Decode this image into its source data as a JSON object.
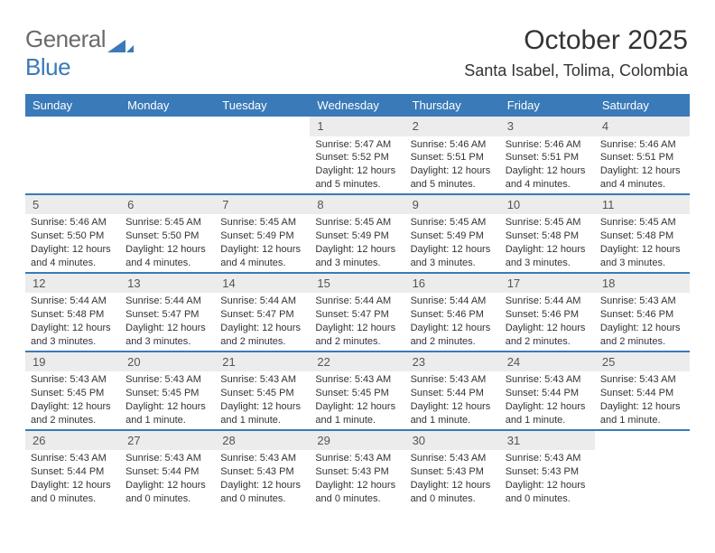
{
  "logo": {
    "text1": "General",
    "text2": "Blue",
    "icon_color": "#3a7ab8"
  },
  "header": {
    "title": "October 2025",
    "location": "Santa Isabel, Tolima, Colombia"
  },
  "colors": {
    "header_bg": "#3a7ab8",
    "header_fg": "#ffffff",
    "daynum_bg": "#ececec",
    "divider": "#3a7ab8"
  },
  "day_names": [
    "Sunday",
    "Monday",
    "Tuesday",
    "Wednesday",
    "Thursday",
    "Friday",
    "Saturday"
  ],
  "weeks": [
    [
      null,
      null,
      null,
      {
        "n": "1",
        "sr": "5:47 AM",
        "ss": "5:52 PM",
        "dl": "12 hours and 5 minutes."
      },
      {
        "n": "2",
        "sr": "5:46 AM",
        "ss": "5:51 PM",
        "dl": "12 hours and 5 minutes."
      },
      {
        "n": "3",
        "sr": "5:46 AM",
        "ss": "5:51 PM",
        "dl": "12 hours and 4 minutes."
      },
      {
        "n": "4",
        "sr": "5:46 AM",
        "ss": "5:51 PM",
        "dl": "12 hours and 4 minutes."
      }
    ],
    [
      {
        "n": "5",
        "sr": "5:46 AM",
        "ss": "5:50 PM",
        "dl": "12 hours and 4 minutes."
      },
      {
        "n": "6",
        "sr": "5:45 AM",
        "ss": "5:50 PM",
        "dl": "12 hours and 4 minutes."
      },
      {
        "n": "7",
        "sr": "5:45 AM",
        "ss": "5:49 PM",
        "dl": "12 hours and 4 minutes."
      },
      {
        "n": "8",
        "sr": "5:45 AM",
        "ss": "5:49 PM",
        "dl": "12 hours and 3 minutes."
      },
      {
        "n": "9",
        "sr": "5:45 AM",
        "ss": "5:49 PM",
        "dl": "12 hours and 3 minutes."
      },
      {
        "n": "10",
        "sr": "5:45 AM",
        "ss": "5:48 PM",
        "dl": "12 hours and 3 minutes."
      },
      {
        "n": "11",
        "sr": "5:45 AM",
        "ss": "5:48 PM",
        "dl": "12 hours and 3 minutes."
      }
    ],
    [
      {
        "n": "12",
        "sr": "5:44 AM",
        "ss": "5:48 PM",
        "dl": "12 hours and 3 minutes."
      },
      {
        "n": "13",
        "sr": "5:44 AM",
        "ss": "5:47 PM",
        "dl": "12 hours and 3 minutes."
      },
      {
        "n": "14",
        "sr": "5:44 AM",
        "ss": "5:47 PM",
        "dl": "12 hours and 2 minutes."
      },
      {
        "n": "15",
        "sr": "5:44 AM",
        "ss": "5:47 PM",
        "dl": "12 hours and 2 minutes."
      },
      {
        "n": "16",
        "sr": "5:44 AM",
        "ss": "5:46 PM",
        "dl": "12 hours and 2 minutes."
      },
      {
        "n": "17",
        "sr": "5:44 AM",
        "ss": "5:46 PM",
        "dl": "12 hours and 2 minutes."
      },
      {
        "n": "18",
        "sr": "5:43 AM",
        "ss": "5:46 PM",
        "dl": "12 hours and 2 minutes."
      }
    ],
    [
      {
        "n": "19",
        "sr": "5:43 AM",
        "ss": "5:45 PM",
        "dl": "12 hours and 2 minutes."
      },
      {
        "n": "20",
        "sr": "5:43 AM",
        "ss": "5:45 PM",
        "dl": "12 hours and 1 minute."
      },
      {
        "n": "21",
        "sr": "5:43 AM",
        "ss": "5:45 PM",
        "dl": "12 hours and 1 minute."
      },
      {
        "n": "22",
        "sr": "5:43 AM",
        "ss": "5:45 PM",
        "dl": "12 hours and 1 minute."
      },
      {
        "n": "23",
        "sr": "5:43 AM",
        "ss": "5:44 PM",
        "dl": "12 hours and 1 minute."
      },
      {
        "n": "24",
        "sr": "5:43 AM",
        "ss": "5:44 PM",
        "dl": "12 hours and 1 minute."
      },
      {
        "n": "25",
        "sr": "5:43 AM",
        "ss": "5:44 PM",
        "dl": "12 hours and 1 minute."
      }
    ],
    [
      {
        "n": "26",
        "sr": "5:43 AM",
        "ss": "5:44 PM",
        "dl": "12 hours and 0 minutes."
      },
      {
        "n": "27",
        "sr": "5:43 AM",
        "ss": "5:44 PM",
        "dl": "12 hours and 0 minutes."
      },
      {
        "n": "28",
        "sr": "5:43 AM",
        "ss": "5:43 PM",
        "dl": "12 hours and 0 minutes."
      },
      {
        "n": "29",
        "sr": "5:43 AM",
        "ss": "5:43 PM",
        "dl": "12 hours and 0 minutes."
      },
      {
        "n": "30",
        "sr": "5:43 AM",
        "ss": "5:43 PM",
        "dl": "12 hours and 0 minutes."
      },
      {
        "n": "31",
        "sr": "5:43 AM",
        "ss": "5:43 PM",
        "dl": "12 hours and 0 minutes."
      },
      null
    ]
  ]
}
